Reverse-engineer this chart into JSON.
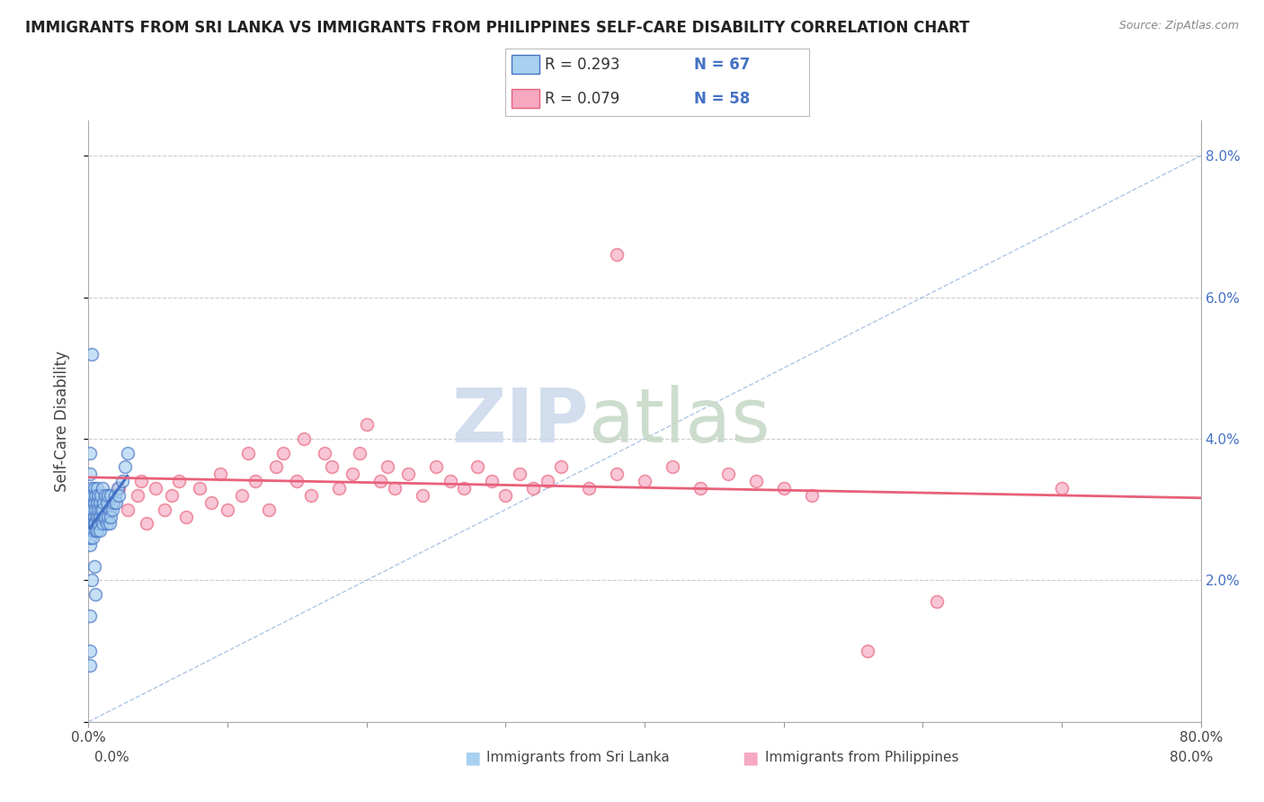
{
  "title": "IMMIGRANTS FROM SRI LANKA VS IMMIGRANTS FROM PHILIPPINES SELF-CARE DISABILITY CORRELATION CHART",
  "source": "Source: ZipAtlas.com",
  "ylabel": "Self-Care Disability",
  "yticks": [
    0.0,
    0.02,
    0.04,
    0.06,
    0.08
  ],
  "ytick_labels": [
    "",
    "2.0%",
    "4.0%",
    "6.0%",
    "8.0%"
  ],
  "xlim": [
    0.0,
    0.8
  ],
  "ylim": [
    0.0,
    0.085
  ],
  "legend_r1": "R = 0.293",
  "legend_n1": "N = 67",
  "legend_r2": "R = 0.079",
  "legend_n2": "N = 58",
  "color_sri_lanka": "#A8D0F0",
  "color_philippines": "#F5A8C0",
  "color_sri_lanka_line": "#4472C4",
  "color_philippines_line": "#E8607A",
  "color_diag": "#7A9FD4",
  "sri_lanka_x": [
    0.001,
    0.001,
    0.001,
    0.001,
    0.001,
    0.002,
    0.002,
    0.002,
    0.002,
    0.003,
    0.003,
    0.003,
    0.003,
    0.003,
    0.004,
    0.004,
    0.004,
    0.004,
    0.005,
    0.005,
    0.005,
    0.005,
    0.006,
    0.006,
    0.006,
    0.006,
    0.007,
    0.007,
    0.007,
    0.008,
    0.008,
    0.008,
    0.009,
    0.009,
    0.01,
    0.01,
    0.01,
    0.011,
    0.011,
    0.012,
    0.012,
    0.013,
    0.013,
    0.014,
    0.014,
    0.015,
    0.015,
    0.016,
    0.016,
    0.017,
    0.018,
    0.019,
    0.02,
    0.021,
    0.022,
    0.024,
    0.026,
    0.028,
    0.004,
    0.005,
    0.002,
    0.001,
    0.001,
    0.001,
    0.002,
    0.001,
    0.001
  ],
  "sri_lanka_y": [
    0.03,
    0.028,
    0.032,
    0.025,
    0.026,
    0.029,
    0.031,
    0.027,
    0.033,
    0.028,
    0.03,
    0.032,
    0.027,
    0.026,
    0.029,
    0.031,
    0.028,
    0.033,
    0.027,
    0.03,
    0.032,
    0.028,
    0.029,
    0.031,
    0.027,
    0.033,
    0.028,
    0.03,
    0.032,
    0.029,
    0.031,
    0.027,
    0.03,
    0.032,
    0.028,
    0.03,
    0.033,
    0.029,
    0.031,
    0.029,
    0.032,
    0.028,
    0.031,
    0.029,
    0.032,
    0.028,
    0.03,
    0.029,
    0.032,
    0.03,
    0.031,
    0.032,
    0.031,
    0.033,
    0.032,
    0.034,
    0.036,
    0.038,
    0.022,
    0.018,
    0.02,
    0.015,
    0.035,
    0.038,
    0.052,
    0.01,
    0.008
  ],
  "philippines_x": [
    0.018,
    0.022,
    0.028,
    0.035,
    0.038,
    0.042,
    0.048,
    0.055,
    0.06,
    0.065,
    0.07,
    0.08,
    0.088,
    0.095,
    0.1,
    0.11,
    0.115,
    0.12,
    0.13,
    0.135,
    0.14,
    0.15,
    0.155,
    0.16,
    0.17,
    0.175,
    0.18,
    0.19,
    0.195,
    0.2,
    0.21,
    0.215,
    0.22,
    0.23,
    0.24,
    0.25,
    0.26,
    0.27,
    0.28,
    0.29,
    0.3,
    0.31,
    0.32,
    0.33,
    0.34,
    0.36,
    0.38,
    0.4,
    0.42,
    0.44,
    0.46,
    0.48,
    0.5,
    0.52,
    0.56,
    0.38,
    0.61,
    0.7
  ],
  "philippines_y": [
    0.031,
    0.033,
    0.03,
    0.032,
    0.034,
    0.028,
    0.033,
    0.03,
    0.032,
    0.034,
    0.029,
    0.033,
    0.031,
    0.035,
    0.03,
    0.032,
    0.038,
    0.034,
    0.03,
    0.036,
    0.038,
    0.034,
    0.04,
    0.032,
    0.038,
    0.036,
    0.033,
    0.035,
    0.038,
    0.042,
    0.034,
    0.036,
    0.033,
    0.035,
    0.032,
    0.036,
    0.034,
    0.033,
    0.036,
    0.034,
    0.032,
    0.035,
    0.033,
    0.034,
    0.036,
    0.033,
    0.035,
    0.034,
    0.036,
    0.033,
    0.035,
    0.034,
    0.033,
    0.032,
    0.01,
    0.066,
    0.017,
    0.033
  ]
}
